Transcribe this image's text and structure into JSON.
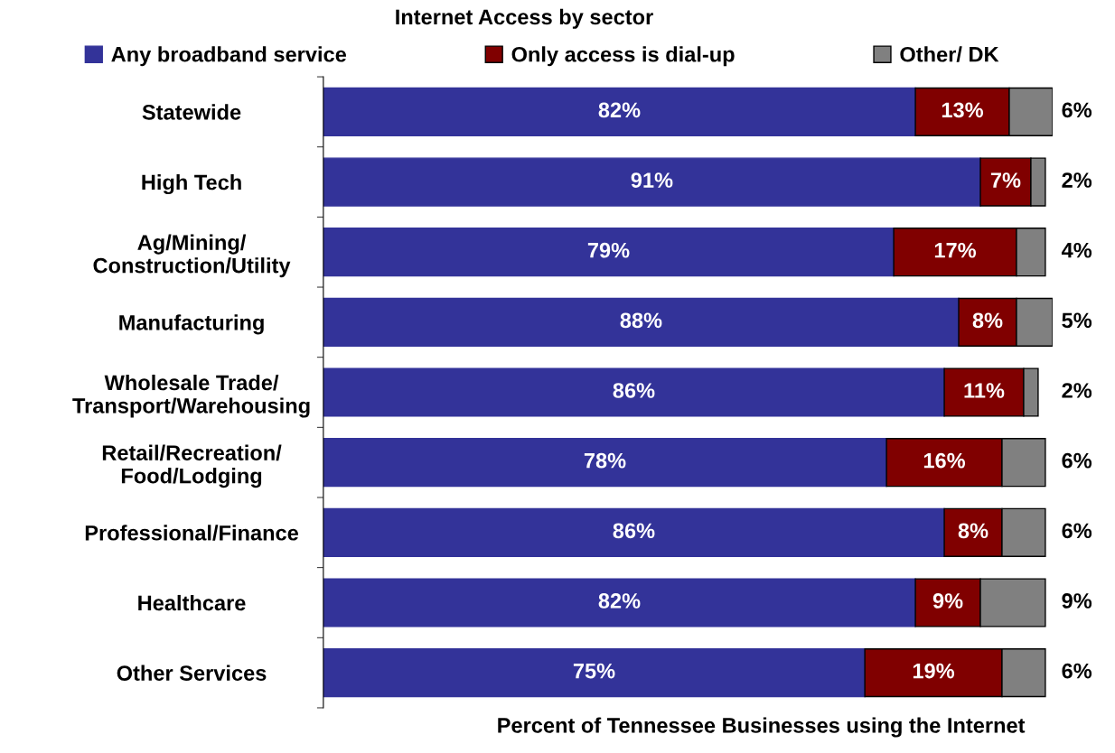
{
  "chart_data": {
    "type": "bar",
    "orientation": "horizontal",
    "stacked": true,
    "title": "Internet Access by sector",
    "xlabel": "Percent of Tennessee Businesses using the Internet",
    "categories": [
      "Statewide",
      "High Tech",
      "Ag/Mining/\nConstruction/Utility",
      "Manufacturing",
      "Wholesale Trade/\nTransport/Warehousing",
      "Retail/Recreation/\nFood/Lodging",
      "Professional/Finance",
      "Healthcare",
      "Other Services"
    ],
    "series": [
      {
        "name": "Any broadband service",
        "color": "#333399",
        "values": [
          82,
          91,
          79,
          88,
          86,
          78,
          86,
          82,
          75
        ],
        "value_labels": [
          "82%",
          "91%",
          "79%",
          "88%",
          "86%",
          "78%",
          "86%",
          "82%",
          "75%"
        ]
      },
      {
        "name": "Only access is dial-up",
        "color": "#800000",
        "values": [
          13,
          7,
          17,
          8,
          11,
          16,
          8,
          9,
          19
        ],
        "value_labels": [
          "13%",
          "7%",
          "17%",
          "8%",
          "11%",
          "16%",
          "8%",
          "9%",
          "19%"
        ]
      },
      {
        "name": "Other/ DK",
        "color": "#808080",
        "values": [
          6,
          2,
          4,
          5,
          2,
          6,
          6,
          9,
          6
        ],
        "value_labels": [
          "6%",
          "2%",
          "4%",
          "5%",
          "2%",
          "6%",
          "6%",
          "9%",
          "6%"
        ]
      }
    ],
    "xlim": [
      0,
      101
    ],
    "tick_labels": "y",
    "legend": "top",
    "grid": false
  }
}
